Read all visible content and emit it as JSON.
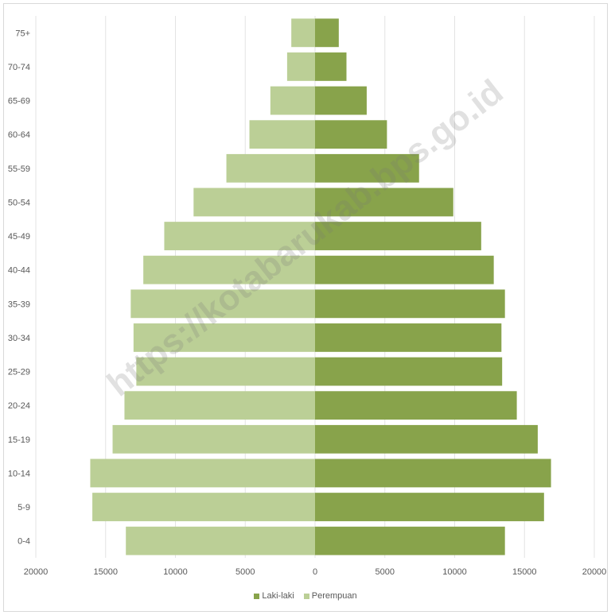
{
  "chart_data": {
    "type": "bar",
    "orientation": "horizontal-population-pyramid",
    "categories": [
      "0-4",
      "5-9",
      "10-14",
      "15-19",
      "20-24",
      "25-29",
      "30-34",
      "35-39",
      "40-44",
      "45-49",
      "50-54",
      "55-59",
      "60-64",
      "65-69",
      "70-74",
      "75+"
    ],
    "series": [
      {
        "name": "Laki-laki",
        "color": "#88a34b",
        "values": [
          13600,
          16400,
          16900,
          15950,
          14450,
          13400,
          13350,
          13600,
          12800,
          11900,
          9900,
          7450,
          5150,
          3700,
          2250,
          1700
        ]
      },
      {
        "name": "Perempuan",
        "color": "#bbcf96",
        "values": [
          13550,
          15950,
          16100,
          14500,
          13650,
          12800,
          13000,
          13200,
          12300,
          10800,
          8700,
          6350,
          4700,
          3200,
          2000,
          1700
        ]
      }
    ],
    "xlim": [
      -20000,
      20000
    ],
    "xticks": [
      "20000",
      "15000",
      "10000",
      "5000",
      "0",
      "5000",
      "10000",
      "15000",
      "20000"
    ],
    "gridlines": true,
    "legend_position": "bottom",
    "watermark": "https://kotabarukab.bps.go.id"
  }
}
